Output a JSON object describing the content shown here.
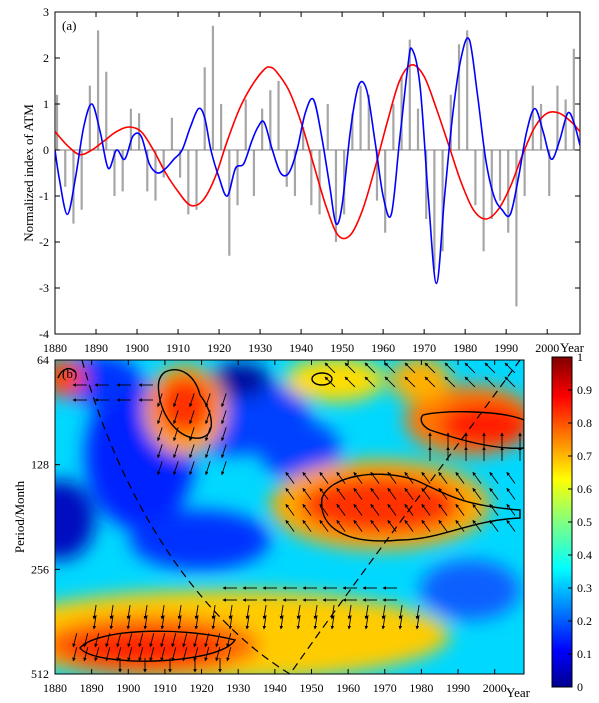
{
  "chart_data": [
    {
      "type": "line",
      "panel_label": "(a)",
      "ylabel": "Normalized index of ATM",
      "xlabel": "Year",
      "xlim": [
        1880,
        2008
      ],
      "ylim": [
        -4,
        3
      ],
      "x_ticks": [
        1880,
        1890,
        1900,
        1910,
        1920,
        1930,
        1940,
        1950,
        1960,
        1970,
        1980,
        1990,
        2000
      ],
      "x_tick_labels": [
        "1880",
        "1890",
        "1900",
        "1910",
        "1920",
        "1930",
        "1940",
        "1950",
        "1960",
        "1970",
        "1980",
        "1990",
        "2000"
      ],
      "y_ticks": [
        -4,
        -3,
        -2,
        -1,
        0,
        1,
        2,
        3
      ],
      "y_tick_labels": [
        "-4",
        "-3",
        "-2",
        "-1",
        "0",
        "1",
        "2",
        "3"
      ],
      "series": [
        {
          "kind": "monthly-bars",
          "color": "#a6a6a6",
          "x": [
            1880.5,
            1882.5,
            1884.5,
            1886.5,
            1888.5,
            1890.5,
            1892.5,
            1894.5,
            1896.5,
            1898.5,
            1900.5,
            1902.5,
            1904.5,
            1906.5,
            1908.5,
            1910.5,
            1912.5,
            1914.5,
            1916.5,
            1918.5,
            1920.5,
            1922.5,
            1924.5,
            1926.5,
            1928.5,
            1930.5,
            1932.5,
            1934.5,
            1936.5,
            1938.5,
            1940.5,
            1942.5,
            1944.5,
            1946.5,
            1948.5,
            1950.5,
            1952.5,
            1954.5,
            1956.5,
            1958.5,
            1960.5,
            1962.5,
            1964.5,
            1966.5,
            1968.5,
            1970.5,
            1972.5,
            1974.5,
            1976.5,
            1978.5,
            1980.5,
            1982.5,
            1984.5,
            1986.5,
            1988.5,
            1990.5,
            1992.5,
            1994.5,
            1996.5,
            1998.5,
            2000.5,
            2002.5,
            2004.5,
            2006.5
          ],
          "values": [
            1.2,
            -0.8,
            -1.6,
            -1.3,
            1.4,
            2.6,
            1.7,
            -1.0,
            -0.9,
            0.9,
            0.8,
            -0.9,
            -1.1,
            -0.6,
            0.7,
            -0.6,
            -1.4,
            -1.3,
            1.8,
            2.7,
            1.0,
            -2.3,
            -1.2,
            1.1,
            -1.0,
            0.9,
            1.3,
            1.5,
            -0.8,
            -1.0,
            0.5,
            -1.2,
            -1.4,
            1.0,
            -2.0,
            -1.4,
            0.8,
            1.4,
            1.2,
            -1.1,
            -1.8,
            1.0,
            1.6,
            2.4,
            0.9,
            -1.5,
            -2.6,
            -2.2,
            1.2,
            2.3,
            2.6,
            -1.2,
            -2.2,
            -1.5,
            -1.1,
            -1.8,
            -3.4,
            -1.0,
            1.4,
            1.0,
            -1.0,
            1.4,
            1.1,
            2.2
          ]
        },
        {
          "name": "",
          "color": "#0000ff",
          "x": [
            1880,
            1881,
            1883,
            1885,
            1887,
            1889,
            1891,
            1893,
            1895,
            1897,
            1899,
            1901,
            1903,
            1905,
            1907,
            1909,
            1911,
            1913,
            1915,
            1916.5,
            1918,
            1920,
            1922,
            1924,
            1926,
            1928,
            1929.5,
            1931,
            1933,
            1935,
            1937,
            1939,
            1941,
            1943,
            1945,
            1947,
            1948.5,
            1950,
            1952,
            1954,
            1956,
            1958,
            1960,
            1962,
            1964,
            1966,
            1967,
            1969,
            1971,
            1973,
            1975,
            1977,
            1979,
            1981,
            1983,
            1985,
            1987,
            1989,
            1991,
            1993,
            1995,
            1997,
            1999,
            2001,
            2003,
            2005,
            2006.5,
            2008
          ],
          "values": [
            0.0,
            -0.6,
            -1.4,
            -0.6,
            0.5,
            1.0,
            0.4,
            -0.4,
            0.0,
            -0.2,
            0.3,
            0.3,
            -0.3,
            -0.5,
            -0.4,
            -0.2,
            0.0,
            0.5,
            0.9,
            0.7,
            0.0,
            -0.6,
            -1.0,
            -0.4,
            -0.3,
            0.2,
            0.5,
            0.6,
            0.0,
            -0.5,
            -0.5,
            0.0,
            0.8,
            1.1,
            0.3,
            -0.8,
            -1.6,
            -1.2,
            0.4,
            1.4,
            1.3,
            0.2,
            -1.0,
            -1.4,
            0.2,
            1.8,
            2.2,
            1.4,
            -1.0,
            -2.9,
            -1.0,
            0.8,
            2.0,
            2.4,
            1.2,
            -0.2,
            -1.0,
            -1.3,
            -1.4,
            -0.6,
            0.4,
            0.9,
            0.4,
            -0.2,
            0.2,
            0.8,
            0.6,
            0.1
          ]
        },
        {
          "name": "",
          "color": "#ff0000",
          "x": [
            1880,
            1883,
            1886,
            1889,
            1892,
            1895,
            1898,
            1901,
            1904,
            1907,
            1910,
            1913,
            1916,
            1919,
            1922,
            1925,
            1928,
            1931,
            1932.5,
            1934,
            1937,
            1940,
            1943,
            1946,
            1949,
            1952,
            1955,
            1958,
            1961,
            1964,
            1967,
            1970,
            1973,
            1976,
            1979,
            1982,
            1985,
            1988,
            1991,
            1994,
            1997,
            2000,
            2003,
            2006,
            2008
          ],
          "values": [
            0.4,
            0.1,
            -0.1,
            0.0,
            0.2,
            0.4,
            0.5,
            0.4,
            0.0,
            -0.5,
            -0.9,
            -1.2,
            -1.1,
            -0.6,
            0.2,
            0.9,
            1.4,
            1.75,
            1.8,
            1.7,
            1.3,
            0.6,
            -0.3,
            -1.2,
            -1.85,
            -1.85,
            -1.3,
            -0.4,
            0.6,
            1.5,
            1.85,
            1.6,
            0.9,
            0.1,
            -0.7,
            -1.3,
            -1.5,
            -1.3,
            -0.8,
            -0.1,
            0.5,
            0.8,
            0.8,
            0.6,
            0.4
          ]
        }
      ]
    },
    {
      "type": "heatmap",
      "panel_label": "(b)",
      "ylabel": "Period/Month",
      "xlabel": "Year",
      "xlim": [
        1880,
        2008
      ],
      "period_range_months": [
        64,
        512
      ],
      "y_scale": "log2",
      "y_ticks": [
        64,
        128,
        256,
        512
      ],
      "y_tick_labels": [
        "64",
        "128",
        "256",
        "512"
      ],
      "x_ticks": [
        1880,
        1890,
        1900,
        1910,
        1920,
        1930,
        1940,
        1950,
        1960,
        1970,
        1980,
        1990,
        2000
      ],
      "x_tick_labels": [
        "1880",
        "1890",
        "1900",
        "1910",
        "1920",
        "1930",
        "1940",
        "1950",
        "1960",
        "1970",
        "1980",
        "1990",
        "2000"
      ],
      "colorbar": {
        "range": [
          0,
          1
        ],
        "ticks": [
          0,
          0.1,
          0.2,
          0.3,
          0.4,
          0.5,
          0.6,
          0.7,
          0.8,
          0.9,
          1
        ],
        "tick_labels": [
          "0",
          "0.1",
          "0.2",
          "0.3",
          "0.4",
          "0.5",
          "0.6",
          "0.7",
          "0.8",
          "0.9",
          "1"
        ],
        "colormap": "jet"
      },
      "high_coherence_regions": [
        {
          "year": 1902,
          "period": 420,
          "level": 0.95
        },
        {
          "year": 1913,
          "period": 82,
          "level": 0.9
        },
        {
          "year": 1964,
          "period": 178,
          "level": 0.92
        },
        {
          "year": 1997,
          "period": 105,
          "level": 0.92
        },
        {
          "year": 1954,
          "period": 70,
          "level": 0.85
        }
      ],
      "cone_of_influence": "dashed",
      "significance_contours": "solid black",
      "phase_arrows": true
    }
  ],
  "colors": {
    "background": "#ffffff",
    "axis": "#000000",
    "grey_series": "#a6a6a6",
    "blue_series": "#0000ff",
    "red_series": "#ff0000"
  }
}
